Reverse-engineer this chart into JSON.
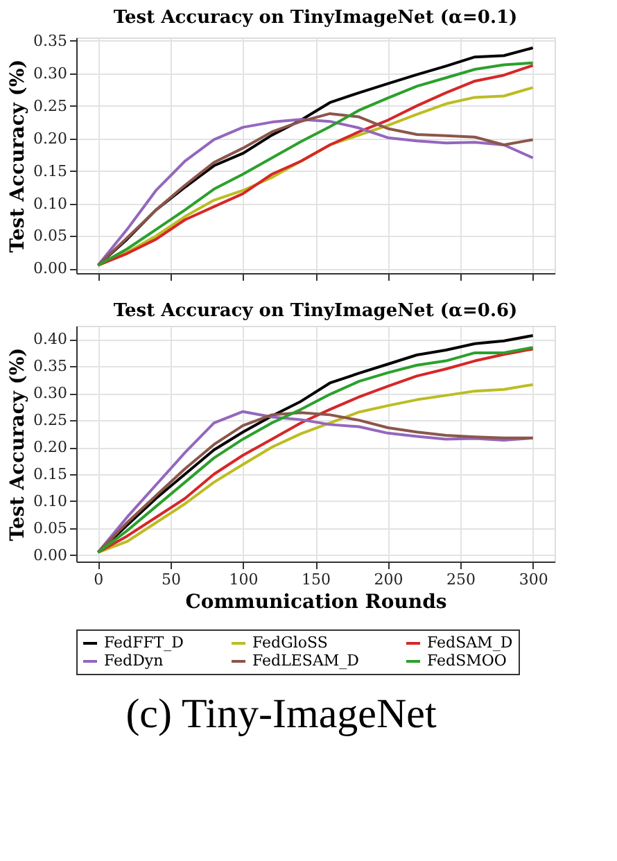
{
  "chart_data": [
    {
      "type": "line",
      "title": "Test Accuracy on TinyImageNet (α=0.1)",
      "ylabel": "Test Accuracy (%)",
      "x": [
        0,
        20,
        40,
        60,
        80,
        100,
        120,
        140,
        160,
        180,
        200,
        220,
        240,
        260,
        280,
        300
      ],
      "xlim": [
        -15,
        315
      ],
      "xticks": [
        0,
        50,
        100,
        150,
        200,
        250,
        300
      ],
      "ylim": [
        -0.007,
        0.355
      ],
      "yticks": [
        {
          "value": 0,
          "label": "0.00"
        },
        0.05,
        {
          "value": 0.1,
          "label": "0.10"
        },
        0.15,
        {
          "value": 0.2,
          "label": "0.20"
        },
        0.25,
        {
          "value": 0.3,
          "label": "0.30"
        },
        0.35
      ],
      "tick_labels": "y",
      "grid": true,
      "legend": "bottom",
      "line_style": "solid",
      "marker": "none",
      "series": [
        {
          "name": "FedFFT_D",
          "color": "#000000",
          "values": [
            0.005,
            0.045,
            0.09,
            0.125,
            0.158,
            0.177,
            0.205,
            0.228,
            0.255,
            0.27,
            0.284,
            0.298,
            0.311,
            0.325,
            0.327,
            0.339
          ]
        },
        {
          "name": "FedGloSS",
          "color": "#bcbd22",
          "values": [
            0.005,
            0.025,
            0.05,
            0.08,
            0.105,
            0.12,
            0.14,
            0.165,
            0.19,
            0.205,
            0.22,
            0.237,
            0.253,
            0.263,
            0.265,
            0.278
          ]
        },
        {
          "name": "FedSAM_D",
          "color": "#d62728",
          "values": [
            0.005,
            0.023,
            0.045,
            0.075,
            0.095,
            0.115,
            0.145,
            0.165,
            0.19,
            0.21,
            0.228,
            0.25,
            0.27,
            0.288,
            0.297,
            0.312
          ]
        },
        {
          "name": "FedDyn",
          "color": "#9467bd",
          "values": [
            0.005,
            0.06,
            0.12,
            0.165,
            0.198,
            0.217,
            0.225,
            0.229,
            0.226,
            0.216,
            0.201,
            0.196,
            0.193,
            0.194,
            0.19,
            0.17
          ]
        },
        {
          "name": "FedLESAM_D",
          "color": "#8c564b",
          "values": [
            0.005,
            0.047,
            0.09,
            0.128,
            0.163,
            0.185,
            0.21,
            0.226,
            0.238,
            0.233,
            0.215,
            0.206,
            0.204,
            0.202,
            0.19,
            0.198
          ]
        },
        {
          "name": "FedSMOO",
          "color": "#2ca02c",
          "values": [
            0.005,
            0.03,
            0.06,
            0.09,
            0.122,
            0.145,
            0.17,
            0.195,
            0.218,
            0.243,
            0.262,
            0.28,
            0.293,
            0.306,
            0.313,
            0.316
          ]
        }
      ]
    },
    {
      "type": "line",
      "title": "Test Accuracy on TinyImageNet (α=0.6)",
      "xlabel": "Communication Rounds",
      "ylabel": "Test Accuracy (%)",
      "x": [
        0,
        20,
        40,
        60,
        80,
        100,
        120,
        140,
        160,
        180,
        200,
        220,
        240,
        260,
        280,
        300
      ],
      "xlim": [
        -15,
        315
      ],
      "xticks": [
        0,
        50,
        100,
        150,
        200,
        250,
        300
      ],
      "ylim": [
        -0.012,
        0.425
      ],
      "yticks": [
        {
          "value": 0,
          "label": "0.00"
        },
        0.05,
        {
          "value": 0.1,
          "label": "0.10"
        },
        0.15,
        {
          "value": 0.2,
          "label": "0.20"
        },
        0.25,
        {
          "value": 0.3,
          "label": "0.30"
        },
        0.35,
        {
          "value": 0.4,
          "label": "0.40"
        }
      ],
      "grid": true,
      "legend": "bottom",
      "line_style": "solid",
      "marker": "none",
      "annotations": [
        "(c) Tiny-ImageNet"
      ],
      "series": [
        {
          "name": "FedFFT_D",
          "color": "#000000",
          "values": [
            0.005,
            0.055,
            0.105,
            0.15,
            0.195,
            0.228,
            0.258,
            0.285,
            0.319,
            0.337,
            0.354,
            0.371,
            0.38,
            0.392,
            0.397,
            0.407
          ]
        },
        {
          "name": "FedGloSS",
          "color": "#bcbd22",
          "values": [
            0.005,
            0.025,
            0.06,
            0.095,
            0.135,
            0.168,
            0.2,
            0.225,
            0.245,
            0.265,
            0.277,
            0.288,
            0.296,
            0.304,
            0.307,
            0.316
          ]
        },
        {
          "name": "FedSAM_D",
          "color": "#d62728",
          "values": [
            0.005,
            0.035,
            0.07,
            0.105,
            0.15,
            0.185,
            0.215,
            0.245,
            0.27,
            0.293,
            0.313,
            0.332,
            0.345,
            0.36,
            0.372,
            0.382
          ]
        },
        {
          "name": "FedDyn",
          "color": "#9467bd",
          "values": [
            0.005,
            0.07,
            0.13,
            0.19,
            0.245,
            0.266,
            0.256,
            0.251,
            0.242,
            0.238,
            0.226,
            0.22,
            0.215,
            0.216,
            0.213,
            0.217
          ]
        },
        {
          "name": "FedLESAM_D",
          "color": "#8c564b",
          "values": [
            0.005,
            0.06,
            0.11,
            0.16,
            0.205,
            0.24,
            0.26,
            0.264,
            0.26,
            0.25,
            0.236,
            0.228,
            0.222,
            0.219,
            0.217,
            0.217
          ]
        },
        {
          "name": "FedSMOO",
          "color": "#2ca02c",
          "values": [
            0.005,
            0.045,
            0.09,
            0.135,
            0.18,
            0.215,
            0.245,
            0.27,
            0.298,
            0.322,
            0.338,
            0.352,
            0.36,
            0.375,
            0.375,
            0.385
          ]
        }
      ]
    }
  ]
}
